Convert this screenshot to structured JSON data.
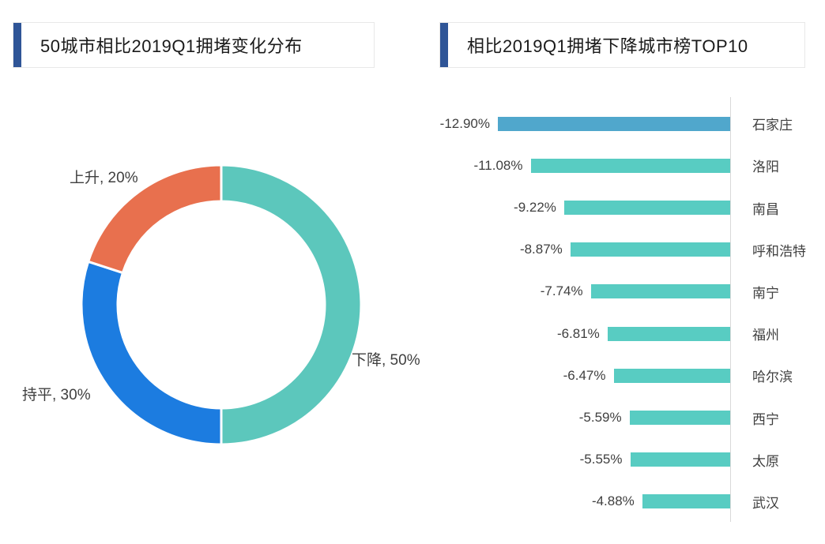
{
  "page": {
    "background": "#ffffff"
  },
  "left_panel": {
    "title": "50城市相比2019Q1拥堵变化分布",
    "accent_color": "#2F5597",
    "border_color": "#e8e8e8"
  },
  "right_panel": {
    "title": "相比2019Q1拥堵下降城市榜TOP10",
    "accent_color": "#2F5597",
    "border_color": "#e8e8e8"
  },
  "chart_data": [
    {
      "type": "pie",
      "subtype": "donut",
      "title": "50城市相比2019Q1拥堵变化分布",
      "labels": [
        "下降",
        "持平",
        "上升"
      ],
      "values": [
        50,
        30,
        20
      ],
      "colors": [
        "#5CC7BC",
        "#1C7CE0",
        "#E8704E"
      ],
      "display_labels": [
        "下降, 50%",
        "持平, 30%",
        "上升, 20%"
      ],
      "start_angle_deg": 0,
      "direction": "clockwise",
      "segment_border_color": "#ffffff",
      "legend": "none"
    },
    {
      "type": "bar",
      "orientation": "horizontal",
      "title": "相比2019Q1拥堵下降城市榜TOP10",
      "categories": [
        "石家庄",
        "洛阳",
        "南昌",
        "呼和浩特",
        "南宁",
        "福州",
        "哈尔滨",
        "西宁",
        "太原",
        "武汉"
      ],
      "values": [
        -12.9,
        -11.08,
        -9.22,
        -8.87,
        -7.74,
        -6.81,
        -6.47,
        -5.59,
        -5.55,
        -4.88
      ],
      "value_labels": [
        "-12.90%",
        "-11.08%",
        "-9.22%",
        "-8.87%",
        "-7.74%",
        "-6.81%",
        "-6.47%",
        "-5.59%",
        "-5.55%",
        "-4.88%"
      ],
      "bar_colors": [
        "#50A7CC",
        "#58CCC2",
        "#58CCC2",
        "#58CCC2",
        "#58CCC2",
        "#58CCC2",
        "#58CCC2",
        "#58CCC2",
        "#58CCC2",
        "#58CCC2"
      ],
      "axis_color": "#d9d9d9",
      "xlim": [
        -13.5,
        0
      ],
      "grid": "off",
      "value_label_position": "left-of-bar",
      "category_label_position": "right-of-axis"
    }
  ]
}
